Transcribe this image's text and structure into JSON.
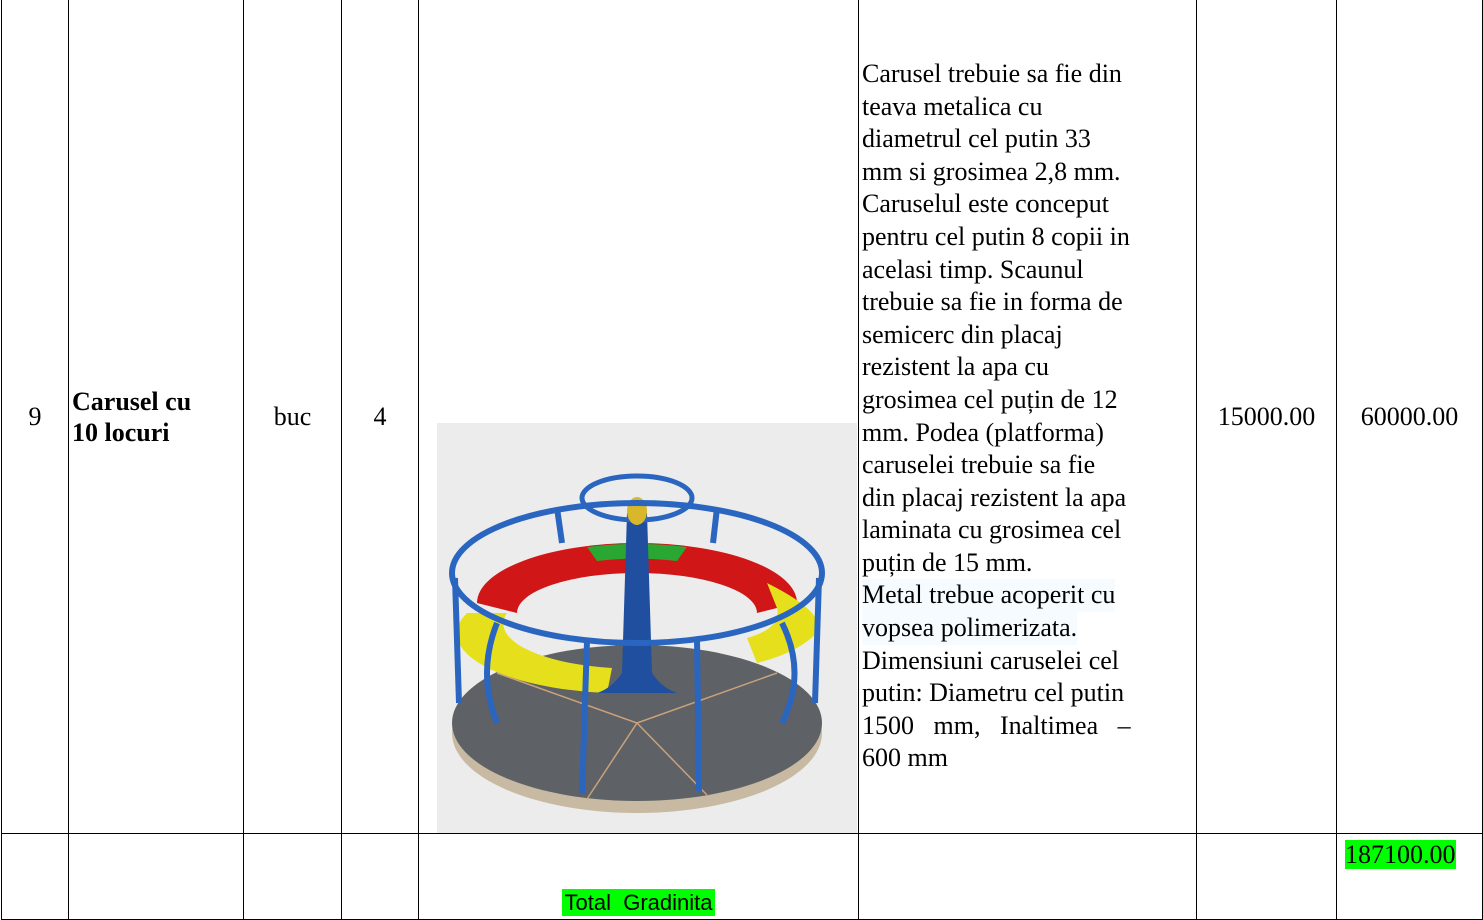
{
  "table": {
    "rows": [
      {
        "number": "9",
        "name": [
          "Carusel cu",
          "10 locuri"
        ],
        "unit": "buc",
        "quantity": "4",
        "description": [
          "Carusel trebuie sa fie din",
          "teava metalica cu",
          "diametrul cel putin 33",
          "mm si grosimea 2,8 mm.",
          "Caruselul este conceput",
          "pentru cel putin 8 copii in",
          "acelasi timp. Scaunul",
          "trebuie sa fie in forma de",
          "semicerc din placaj",
          "rezistent la apa cu",
          "grosimea cel puțin de 12",
          "mm. Podea (platforma)",
          "caruselei trebuie sa fie",
          "din placaj rezistent la apa",
          "laminata cu grosimea cel",
          "puțin de 15 mm.",
          "Metal trebue acoperit cu",
          "vopsea polimerizata.",
          "Dimensiuni caruselei cel",
          "putin: Diametru cel putin",
          "1500   mm,   Inaltimea   –",
          "600 mm"
        ],
        "unit_price": "15000.00",
        "total": "60000.00"
      }
    ],
    "footer": {
      "label": "Total  Gradinita",
      "total": "187100.00"
    }
  }
}
